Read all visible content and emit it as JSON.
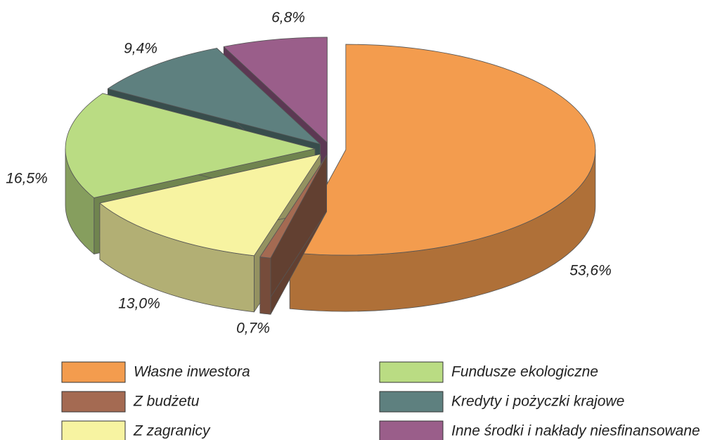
{
  "chart_data": {
    "type": "pie3d",
    "categories": [
      "Własne inwestora",
      "Z budżetu",
      "Z zagranicy",
      "Fundusze ekologiczne",
      "Kredyty i pożyczki krajowe",
      "Inne środki i nakłady niesfinansowane"
    ],
    "values": [
      53.6,
      0.7,
      13.0,
      16.5,
      9.4,
      6.8
    ],
    "value_labels": [
      "53,6%",
      "0,7%",
      "13,0%",
      "16,5%",
      "9,4%",
      "6,8%"
    ],
    "colors": [
      "#f39c4e",
      "#a46a52",
      "#f7f3a1",
      "#badc83",
      "#5e807f",
      "#9a5e8a"
    ]
  }
}
